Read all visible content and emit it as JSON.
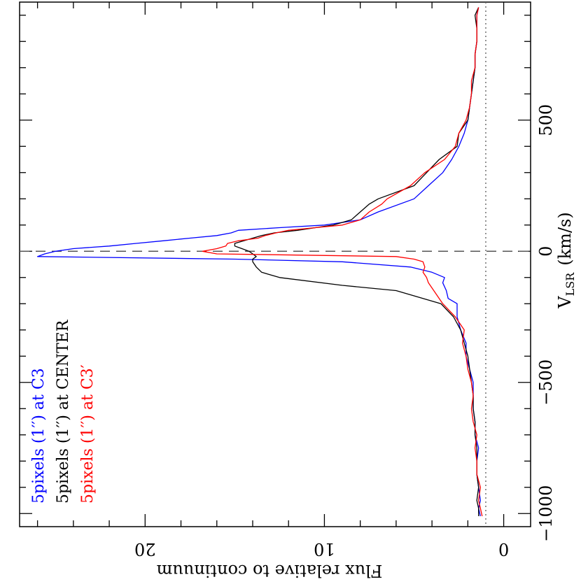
{
  "chart_data": {
    "type": "line",
    "title": "",
    "xlabel": "V",
    "xlabel_sub": "LSR",
    "xlabel_unit": "(km/s)",
    "ylabel": "Flux relative to continuum",
    "xlim": [
      -1050,
      950
    ],
    "ylim": [
      -1.5,
      27
    ],
    "x_ticks": [
      -1000,
      -500,
      0,
      500
    ],
    "x_tick_labels": [
      "−1000",
      "−500",
      "0",
      "500"
    ],
    "y_ticks": [
      0,
      10,
      20
    ],
    "y_tick_labels": [
      "0",
      "10",
      "20"
    ],
    "orientation": "rotated-90",
    "reference_vline": 0,
    "reference_hline": 1,
    "legend_position": "bottom-left",
    "series": [
      {
        "name": "5pixels (1′′) at C3",
        "color": "#0000ff",
        "x": [
          -1010,
          -980,
          -950,
          -900,
          -850,
          -800,
          -750,
          -700,
          -650,
          -600,
          -550,
          -500,
          -450,
          -400,
          -350,
          -300,
          -250,
          -200,
          -180,
          -150,
          -120,
          -100,
          -80,
          -60,
          -40,
          -30,
          -20,
          -10,
          0,
          10,
          20,
          30,
          40,
          50,
          60,
          70,
          80,
          90,
          100,
          120,
          150,
          200,
          250,
          300,
          350,
          400,
          450,
          500,
          550,
          600,
          650,
          700,
          750,
          800,
          850,
          900,
          930
        ],
        "y": [
          1.3,
          1.4,
          1.3,
          1.4,
          1.5,
          1.5,
          1.4,
          1.6,
          1.6,
          1.7,
          1.7,
          1.7,
          1.9,
          2.1,
          2.1,
          2.4,
          2.6,
          2.6,
          3.1,
          3.2,
          3.4,
          3.3,
          4.0,
          5.2,
          9.0,
          15.0,
          26.0,
          25.6,
          25.0,
          24.0,
          22.0,
          20.5,
          19.0,
          17.5,
          16.0,
          15.2,
          14.8,
          12.5,
          10.0,
          8.0,
          7.0,
          5.0,
          4.2,
          3.4,
          2.9,
          2.5,
          2.2,
          2.0,
          1.9,
          1.8,
          1.7,
          1.6,
          1.6,
          1.5,
          1.5,
          1.5,
          1.4
        ]
      },
      {
        "name": "5pixels (1′′) at CENTER",
        "color": "#000000",
        "x": [
          -1010,
          -980,
          -950,
          -900,
          -850,
          -800,
          -750,
          -700,
          -650,
          -600,
          -550,
          -500,
          -450,
          -400,
          -350,
          -300,
          -250,
          -200,
          -150,
          -130,
          -100,
          -80,
          -60,
          -40,
          -30,
          -20,
          -10,
          0,
          10,
          20,
          30,
          40,
          50,
          60,
          70,
          80,
          90,
          100,
          120,
          150,
          180,
          200,
          250,
          300,
          350,
          400,
          450,
          500,
          550,
          600,
          650,
          700,
          750,
          800,
          850,
          900,
          930
        ],
        "y": [
          1.4,
          1.4,
          1.5,
          1.4,
          1.5,
          1.5,
          1.5,
          1.6,
          1.6,
          1.7,
          1.7,
          1.8,
          1.9,
          2.0,
          2.2,
          2.4,
          2.8,
          3.5,
          6.0,
          9.0,
          12.5,
          13.5,
          13.8,
          14.0,
          14.0,
          13.8,
          14.0,
          14.2,
          14.6,
          15.0,
          15.0,
          14.5,
          14.0,
          13.5,
          12.8,
          11.5,
          10.5,
          9.5,
          8.5,
          8.0,
          7.5,
          7.0,
          5.0,
          4.3,
          3.6,
          2.6,
          2.5,
          2.0,
          1.9,
          1.8,
          1.7,
          1.6,
          1.6,
          1.5,
          1.5,
          1.6,
          1.4
        ]
      },
      {
        "name": "5pixels (1′′) at C3′",
        "color": "#ff0000",
        "x": [
          -1010,
          -980,
          -950,
          -900,
          -850,
          -800,
          -750,
          -700,
          -650,
          -600,
          -550,
          -500,
          -450,
          -400,
          -350,
          -300,
          -250,
          -200,
          -150,
          -120,
          -100,
          -80,
          -60,
          -40,
          -30,
          -20,
          -10,
          0,
          10,
          20,
          30,
          40,
          50,
          60,
          70,
          80,
          90,
          100,
          120,
          150,
          180,
          200,
          250,
          300,
          350,
          400,
          450,
          500,
          550,
          600,
          650,
          700,
          750,
          800,
          850,
          900,
          930
        ],
        "y": [
          1.2,
          1.3,
          1.4,
          1.3,
          1.5,
          1.5,
          1.6,
          1.5,
          1.7,
          1.8,
          1.7,
          1.8,
          2.0,
          2.1,
          2.3,
          2.2,
          2.7,
          3.4,
          3.9,
          4.2,
          4.3,
          4.5,
          4.4,
          4.5,
          5.0,
          6.0,
          16.0,
          16.8,
          16.0,
          15.5,
          15.4,
          14.8,
          13.7,
          13.3,
          12.7,
          12.0,
          10.5,
          9.0,
          8.0,
          7.5,
          6.8,
          6.5,
          5.2,
          4.4,
          3.3,
          2.7,
          2.5,
          2.1,
          1.9,
          1.8,
          1.8,
          1.6,
          1.6,
          1.5,
          1.5,
          1.5,
          1.4
        ]
      }
    ]
  }
}
